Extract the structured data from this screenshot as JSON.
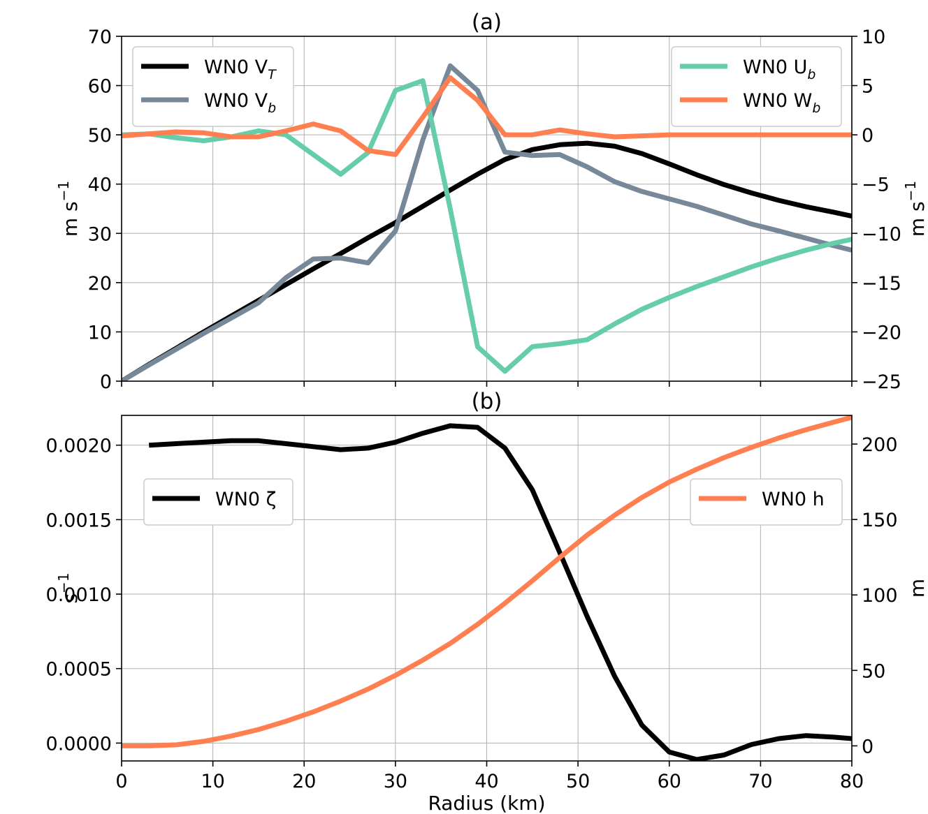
{
  "xlabel": "Radius (km)",
  "x_ticks": [
    "0",
    "10",
    "20",
    "30",
    "40",
    "50",
    "60",
    "70",
    "80"
  ],
  "colors": {
    "black": "#000000",
    "slate": "#778899",
    "teal": "#66cdaa",
    "orange": "#ff7f50",
    "grid": "#b0b0b0"
  },
  "chart_data": [
    {
      "type": "line",
      "title": "(a)",
      "xlim": [
        0,
        80
      ],
      "ylabel_left": "m s",
      "ylabel_left_sup": "−1",
      "ylabel_right": "m s",
      "ylabel_right_sup": "−1",
      "ylim_left": [
        0,
        70
      ],
      "ylim_right": [
        -25,
        10
      ],
      "yticks_left": [
        "0",
        "10",
        "20",
        "30",
        "40",
        "50",
        "60",
        "70"
      ],
      "yticks_right": [
        "−25",
        "−20",
        "−15",
        "−10",
        "−5",
        "0",
        "5",
        "10"
      ],
      "grid": true,
      "legend_left_placement": "top-left",
      "legend_right_placement": "top-right",
      "series": [
        {
          "name": "WN0 V",
          "name_sub": "T",
          "axis": "left",
          "color": "#000000",
          "x": [
            0,
            3,
            6,
            9,
            12,
            15,
            18,
            21,
            24,
            27,
            30,
            33,
            36,
            39,
            42,
            45,
            48,
            51,
            54,
            57,
            60,
            63,
            66,
            69,
            72,
            75,
            78,
            80
          ],
          "y": [
            0,
            3.4,
            6.7,
            10.0,
            13.2,
            16.4,
            19.6,
            22.8,
            25.9,
            29.1,
            32.2,
            35.5,
            38.8,
            42.0,
            45.0,
            47.0,
            48.0,
            48.3,
            47.7,
            46.2,
            44.1,
            41.9,
            39.9,
            38.2,
            36.7,
            35.4,
            34.3,
            33.5
          ]
        },
        {
          "name": "WN0 V",
          "name_sub": "b",
          "axis": "left",
          "color": "#778899",
          "x": [
            0,
            3,
            6,
            9,
            12,
            15,
            18,
            21,
            24,
            27,
            30,
            33,
            36,
            39,
            42,
            45,
            48,
            51,
            54,
            57,
            60,
            63,
            66,
            69,
            72,
            75,
            78,
            80
          ],
          "y": [
            0,
            3.3,
            6.5,
            9.7,
            12.8,
            15.9,
            21.0,
            24.8,
            25.0,
            24.0,
            30.5,
            49.0,
            64.0,
            59.0,
            46.5,
            45.8,
            46.0,
            43.5,
            40.5,
            38.5,
            37.0,
            35.5,
            33.7,
            31.9,
            30.5,
            29.0,
            27.5,
            26.6
          ]
        },
        {
          "name": "WN0 U",
          "name_sub": "b",
          "axis": "right",
          "color": "#66cdaa",
          "x": [
            0,
            3,
            6,
            9,
            12,
            15,
            18,
            21,
            24,
            27,
            30,
            33,
            36,
            39,
            42,
            45,
            48,
            51,
            54,
            57,
            60,
            63,
            66,
            69,
            72,
            75,
            78,
            80
          ],
          "y": [
            0.0,
            0.1,
            -0.3,
            -0.6,
            -0.2,
            0.4,
            0.0,
            -2.0,
            -4.0,
            -1.8,
            4.5,
            5.5,
            -7.5,
            -21.5,
            -24.0,
            -21.5,
            -21.2,
            -20.8,
            -19.2,
            -17.7,
            -16.5,
            -15.4,
            -14.4,
            -13.4,
            -12.5,
            -11.7,
            -11.0,
            -10.6
          ]
        },
        {
          "name": "WN0 W",
          "name_sub": "b",
          "axis": "right",
          "color": "#ff7f50",
          "x": [
            0,
            3,
            6,
            9,
            12,
            15,
            18,
            21,
            24,
            27,
            30,
            33,
            36,
            39,
            42,
            45,
            48,
            51,
            54,
            57,
            60,
            63,
            66,
            69,
            72,
            75,
            78,
            80
          ],
          "y": [
            -0.1,
            0.1,
            0.3,
            0.2,
            -0.2,
            -0.2,
            0.4,
            1.1,
            0.4,
            -1.6,
            -2.0,
            1.8,
            5.8,
            3.5,
            0.0,
            0.0,
            0.5,
            0.1,
            -0.2,
            -0.1,
            0.0,
            0.0,
            0.0,
            0.0,
            0.0,
            0.0,
            0.0,
            0.0
          ]
        }
      ]
    },
    {
      "type": "line",
      "title": "(b)",
      "xlim": [
        0,
        80
      ],
      "ylabel_left": "s",
      "ylabel_left_sup": "−1",
      "ylabel_right": "m",
      "ylim_left": [
        -0.00012,
        0.0022
      ],
      "ylim_right": [
        -10,
        219
      ],
      "yticks_left": [
        "0.0000",
        "0.0005",
        "0.0010",
        "0.0015",
        "0.0020"
      ],
      "yticks_right": [
        "0",
        "50",
        "100",
        "150",
        "200"
      ],
      "grid": true,
      "legend_left_placement": "center-left",
      "legend_right_placement": "center-right",
      "series": [
        {
          "name": "WN0 ζ",
          "axis": "left",
          "color": "#000000",
          "x": [
            3,
            6,
            9,
            12,
            15,
            18,
            21,
            24,
            27,
            30,
            33,
            36,
            39,
            42,
            45,
            48,
            51,
            54,
            57,
            60,
            63,
            66,
            69,
            72,
            75,
            78,
            80
          ],
          "y": [
            0.002,
            0.00201,
            0.00202,
            0.00203,
            0.00203,
            0.00201,
            0.00199,
            0.00197,
            0.00198,
            0.00202,
            0.00208,
            0.00213,
            0.00212,
            0.00198,
            0.0017,
            0.00128,
            0.00085,
            0.00045,
            0.00012,
            -6e-05,
            -0.00011,
            -8e-05,
            -1e-05,
            3e-05,
            5e-05,
            4e-05,
            3e-05
          ]
        },
        {
          "name": "WN0 h",
          "axis": "right",
          "color": "#ff7f50",
          "x": [
            0,
            3,
            6,
            9,
            12,
            15,
            18,
            21,
            24,
            27,
            30,
            33,
            36,
            39,
            42,
            45,
            48,
            51,
            54,
            57,
            60,
            63,
            66,
            69,
            72,
            75,
            78,
            80
          ],
          "y": [
            0,
            0,
            0.7,
            3,
            6.5,
            10.8,
            16.3,
            22.5,
            29.7,
            37.6,
            46.7,
            56.8,
            67.9,
            80.5,
            94.5,
            109.4,
            124.8,
            139.7,
            152.8,
            164.6,
            174.8,
            183.3,
            191,
            197.8,
            204,
            209.5,
            214.5,
            217.7
          ]
        }
      ]
    }
  ]
}
